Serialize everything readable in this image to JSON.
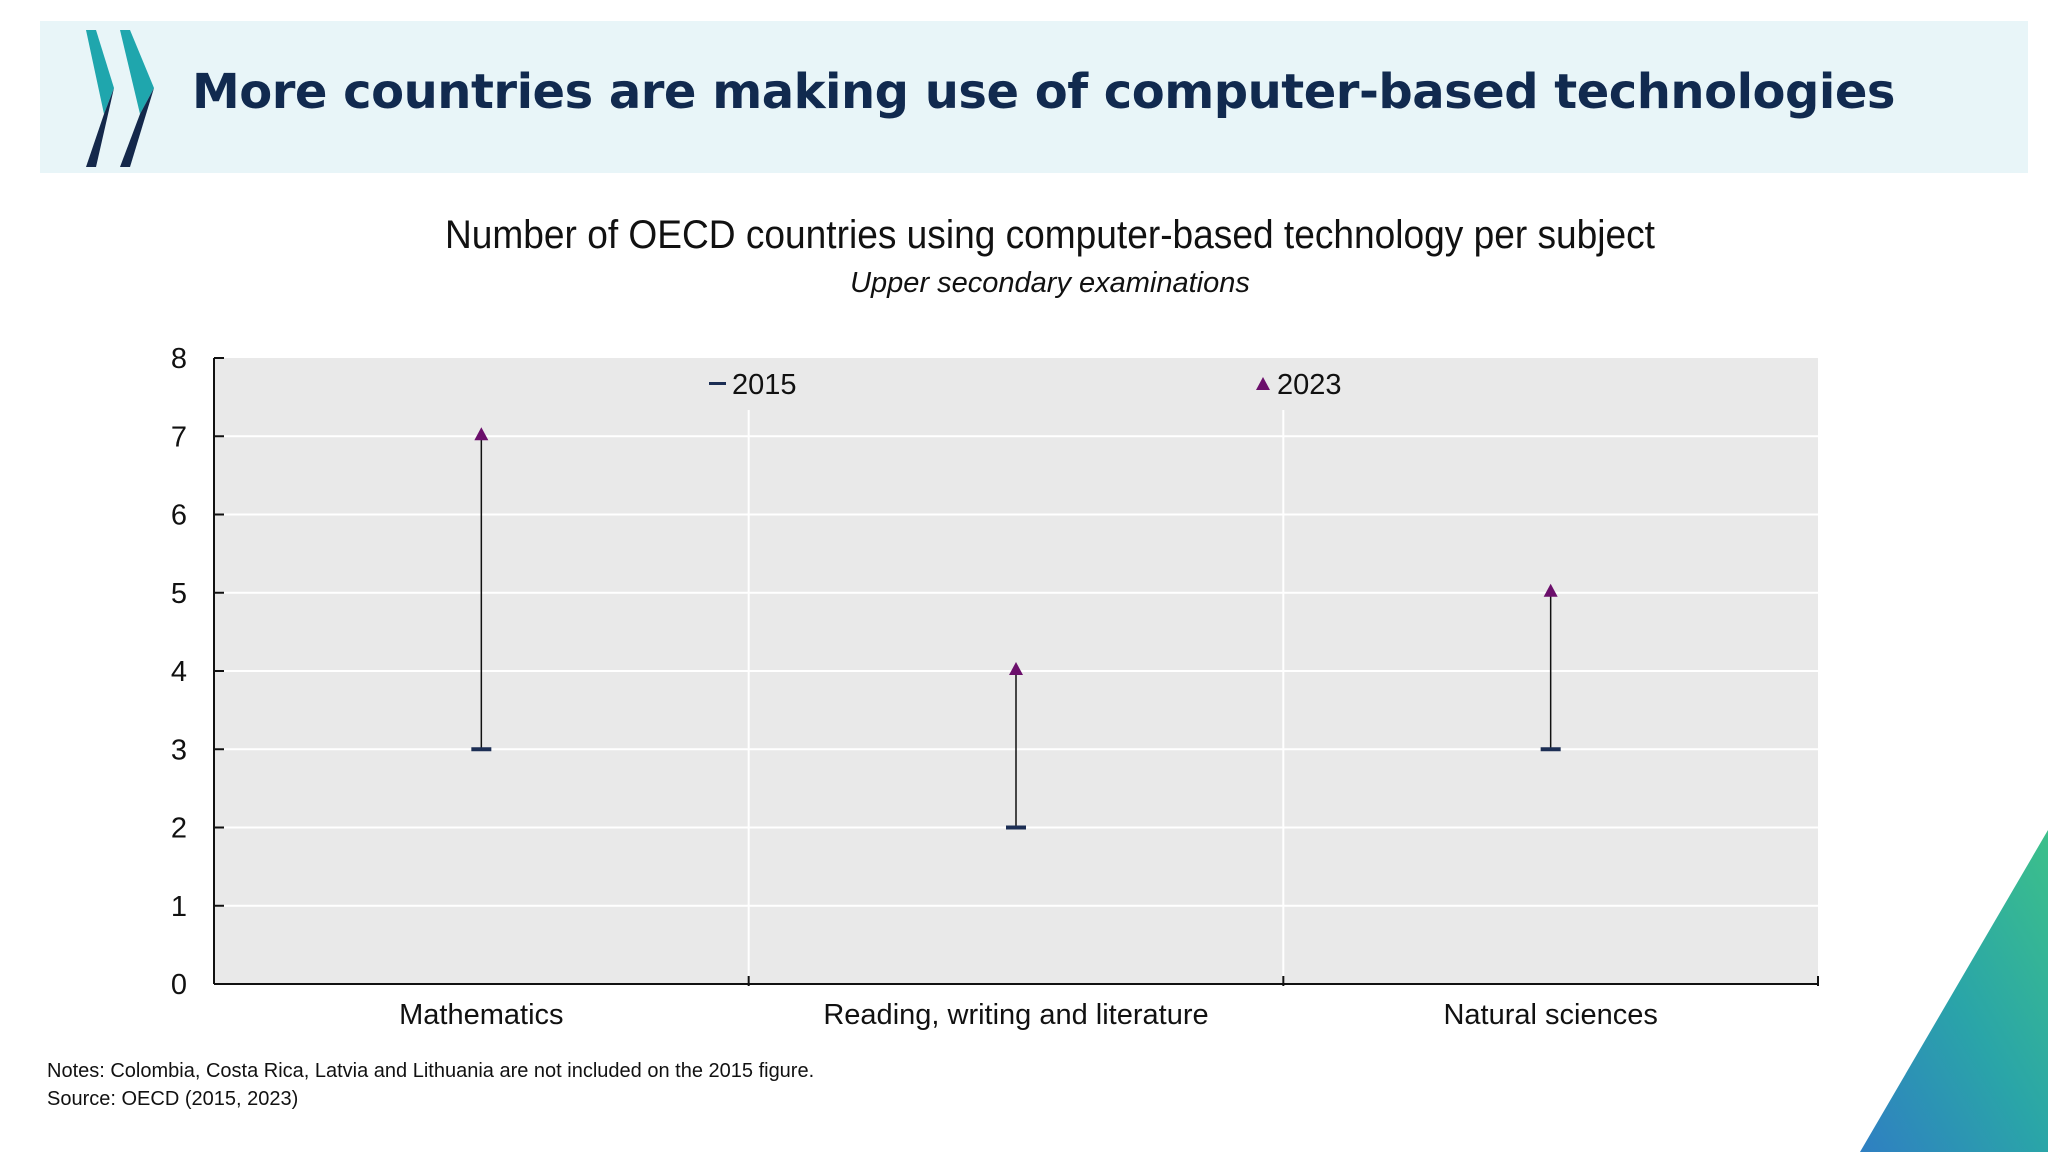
{
  "slide": {
    "title": "More countries are making use of computer-based technologies",
    "notes": "Notes: Colombia, Costa Rica, Latvia and Lithuania are not included on the 2015 figure.",
    "source": "Source: OECD (2015, 2023)"
  },
  "colors": {
    "header_band": "#e8f5f8",
    "title_text": "#112a4f",
    "logo_dark": "#14284b",
    "logo_teal": "#1fa6ad",
    "plot_background": "#e9e9e9",
    "gridline": "#ffffff",
    "marker_2015": "#1c2e54",
    "marker_2023": "#6b0f6b",
    "range_line": "#111111"
  },
  "chart_data": {
    "type": "dot-range",
    "title": "Number of OECD countries using computer-based technology per subject",
    "subtitle": "Upper secondary examinations",
    "categories": [
      "Mathematics",
      "Reading, writing and literature",
      "Natural sciences"
    ],
    "series": [
      {
        "name": "2015",
        "marker": "dash",
        "values": [
          3,
          2,
          3
        ]
      },
      {
        "name": "2023",
        "marker": "triangle",
        "values": [
          7,
          4,
          5
        ]
      }
    ],
    "ylim": [
      0,
      8
    ],
    "yticks": [
      "0",
      "1",
      "2",
      "3",
      "4",
      "5",
      "6",
      "7",
      "8"
    ],
    "xlabel": "",
    "ylabel": "",
    "grid": true,
    "legend_position": "top, inside plot"
  }
}
